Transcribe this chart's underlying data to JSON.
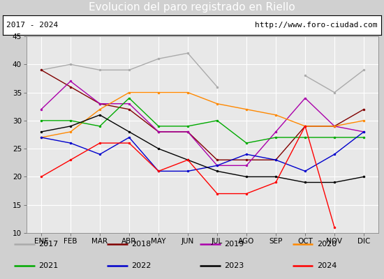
{
  "title": "Evolucion del paro registrado en Riello",
  "title_color": "white",
  "title_bg": "#4472c4",
  "subtitle_left": "2017 - 2024",
  "subtitle_right": "http://www.foro-ciudad.com",
  "months": [
    "ENE",
    "FEB",
    "MAR",
    "ABR",
    "MAY",
    "JUN",
    "JUL",
    "AGO",
    "SEP",
    "OCT",
    "NOV",
    "DIC"
  ],
  "ylim": [
    10,
    45
  ],
  "yticks": [
    10,
    15,
    20,
    25,
    30,
    35,
    40,
    45
  ],
  "series": [
    {
      "label": "2017",
      "color": "#aaaaaa",
      "data": [
        39,
        40,
        39,
        39,
        41,
        42,
        36,
        null,
        null,
        38,
        35,
        39
      ]
    },
    {
      "label": "2018",
      "color": "#800000",
      "data": [
        39,
        36,
        33,
        32,
        28,
        28,
        23,
        23,
        23,
        29,
        29,
        32
      ]
    },
    {
      "label": "2019",
      "color": "#aa00aa",
      "data": [
        32,
        37,
        33,
        33,
        28,
        28,
        22,
        22,
        28,
        34,
        29,
        28
      ]
    },
    {
      "label": "2020",
      "color": "#ff8800",
      "data": [
        27,
        28,
        32,
        35,
        35,
        35,
        33,
        32,
        31,
        29,
        29,
        30
      ]
    },
    {
      "label": "2021",
      "color": "#00aa00",
      "data": [
        30,
        30,
        29,
        34,
        29,
        29,
        30,
        26,
        27,
        27,
        27,
        27
      ]
    },
    {
      "label": "2022",
      "color": "#0000cc",
      "data": [
        27,
        26,
        24,
        27,
        21,
        21,
        22,
        24,
        23,
        21,
        24,
        28
      ]
    },
    {
      "label": "2023",
      "color": "#000000",
      "data": [
        28,
        29,
        31,
        28,
        25,
        23,
        21,
        20,
        20,
        19,
        19,
        20
      ]
    },
    {
      "label": "2024",
      "color": "#ff0000",
      "data": [
        20,
        23,
        26,
        26,
        21,
        23,
        17,
        17,
        19,
        29,
        11,
        null
      ]
    }
  ],
  "plot_bg": "#e8e8e8",
  "grid_color": "white",
  "legend_bg": "white",
  "legend_border": "#4472c4",
  "info_box_border": "#000000",
  "info_box_bg": "white",
  "fig_bg": "#d0d0d0"
}
